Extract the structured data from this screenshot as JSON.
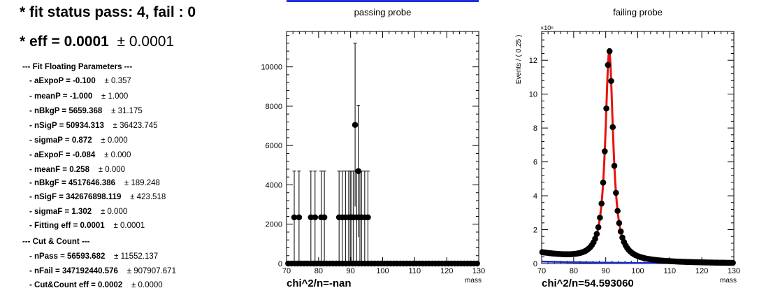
{
  "status_line": "* fit status pass: 4, fail : 0",
  "eff_line": {
    "label": "* eff = 0.0001",
    "pm": "± 0.0001"
  },
  "fit_header": "--- Fit Floating Parameters ---",
  "fit_params": [
    {
      "label": "- aExpoP = -0.100",
      "err": "± 0.357"
    },
    {
      "label": "- meanP = -1.000",
      "err": "± 1.000"
    },
    {
      "label": "- nBkgP = 5659.368",
      "err": "± 31.175"
    },
    {
      "label": "- nSigP = 50934.313",
      "err": "± 36423.745"
    },
    {
      "label": "- sigmaP = 0.872",
      "err": "± 0.000"
    },
    {
      "label": "- aExpoF = -0.084",
      "err": "± 0.000"
    },
    {
      "label": "- meanF = 0.258",
      "err": "± 0.000"
    },
    {
      "label": "- nBkgF = 4517646.386",
      "err": "± 189.248"
    },
    {
      "label": "- nSigF = 342676898.119",
      "err": "± 423.518"
    },
    {
      "label": "- sigmaF = 1.302",
      "err": "± 0.000"
    },
    {
      "label": "- Fitting eff = 0.0001",
      "err": "± 0.0001"
    }
  ],
  "cc_header": "--- Cut & Count ---",
  "cc_params": [
    {
      "label": "- nPass = 56593.682",
      "err": "± 11552.137"
    },
    {
      "label": "- nFail = 347192440.576",
      "err": "± 907907.671"
    },
    {
      "label": "- Cut&Count eff = 0.0002",
      "err": "± 0.0000"
    }
  ],
  "colors": {
    "points": "#000000",
    "fit_curve": "#e8120c",
    "background_curve": "#1a2ad6",
    "axis": "#000000"
  },
  "chart_data": [
    {
      "type": "scatter",
      "title": "passing probe",
      "xlabel": "mass",
      "ylabel": "",
      "footer": "chi^2/n=-nan",
      "xlim": [
        70,
        130
      ],
      "ylim": [
        0,
        11800
      ],
      "xticks": [
        70,
        80,
        90,
        100,
        110,
        120,
        130
      ],
      "yticks": [
        0,
        2000,
        4000,
        6000,
        8000,
        10000
      ],
      "ytick_labels": [
        "0",
        "2000",
        "4000",
        "6000",
        "8000",
        "10000"
      ],
      "exponent_label": "",
      "bin_width": 0.25,
      "series": [
        {
          "x": [
            72.4,
            73.9,
            77.6,
            78.9,
            80.8,
            81.8,
            86.4,
            87.4,
            88.4,
            89.4,
            89.9,
            90.4,
            90.9,
            91.4,
            91.9,
            92.4,
            92.9,
            93.4,
            94.4,
            95.4
          ],
          "y": [
            2350,
            2350,
            2350,
            2350,
            2350,
            2350,
            2350,
            2350,
            2350,
            2350,
            2350,
            2350,
            2350,
            7050,
            2350,
            4700,
            2350,
            2350,
            2350,
            2350
          ],
          "yerr": [
            2350,
            2350,
            2350,
            2350,
            2350,
            2350,
            2350,
            2350,
            2350,
            2350,
            2350,
            2350,
            2350,
            4150,
            2350,
            3350,
            2350,
            2350,
            2350,
            2350
          ]
        }
      ],
      "fit_curve": [],
      "background_curve": []
    },
    {
      "type": "scatter",
      "title": "failing probe",
      "xlabel": "mass",
      "ylabel": "Events / ( 0.25 )",
      "footer": "chi^2/n=54.593060",
      "xlim": [
        70,
        130
      ],
      "ylim": [
        0,
        13.7
      ],
      "xticks": [
        70,
        80,
        90,
        100,
        110,
        120,
        130
      ],
      "yticks": [
        0,
        2,
        4,
        6,
        8,
        10,
        12
      ],
      "ytick_labels": [
        "0",
        "2",
        "4",
        "6",
        "8",
        "10",
        "12"
      ],
      "exponent_label": "×10⁶",
      "bin_width": 0.25,
      "series": [],
      "fit_curve": [],
      "background_curve": []
    }
  ]
}
